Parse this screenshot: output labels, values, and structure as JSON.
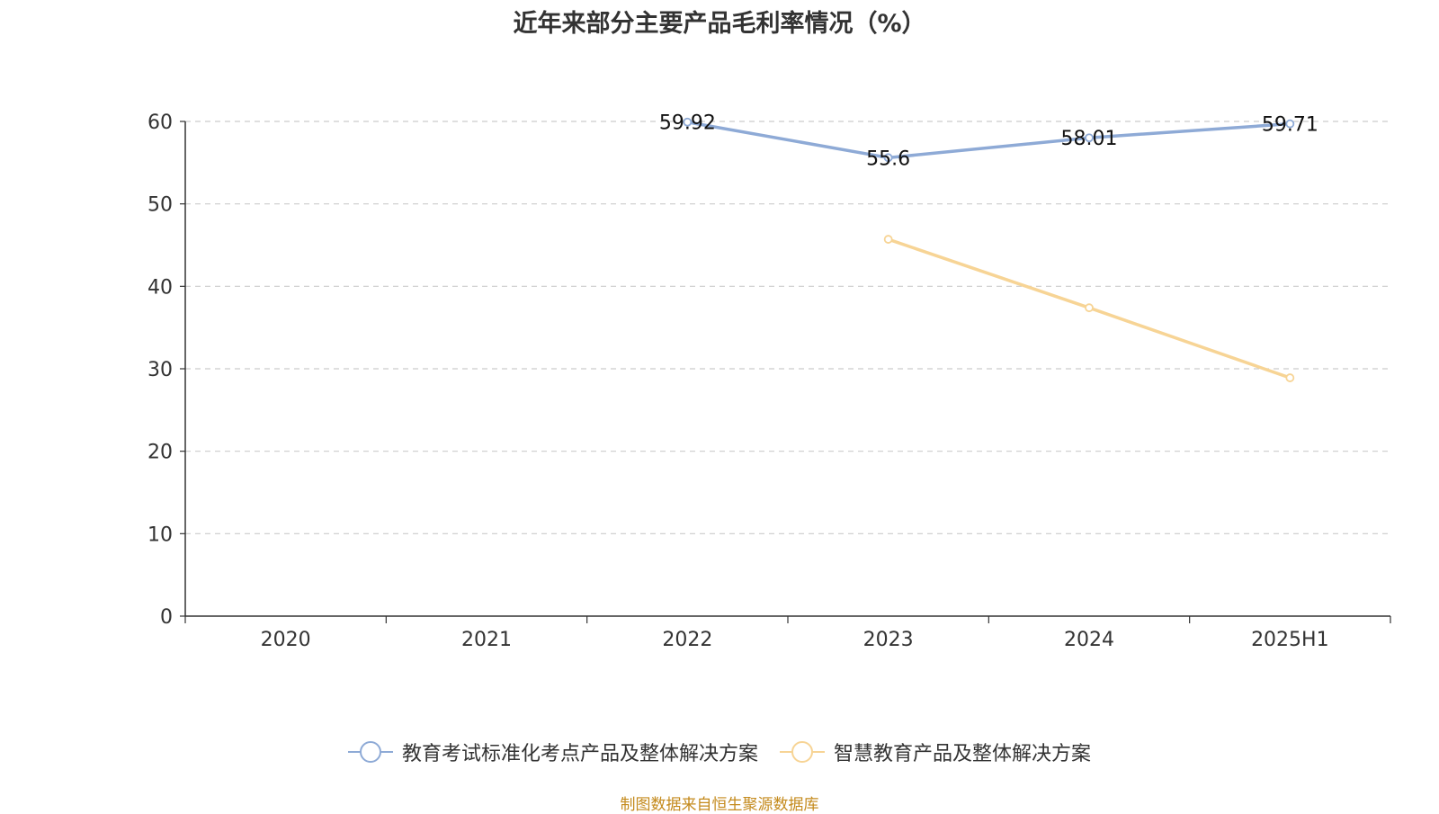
{
  "chart_data": {
    "type": "line",
    "title": "近年来部分主要产品毛利率情况（%）",
    "categories": [
      "2020",
      "2021",
      "2022",
      "2023",
      "2024",
      "2025H1"
    ],
    "ylim": [
      0,
      60
    ],
    "yticks": [
      "0",
      "10",
      "20",
      "30",
      "40",
      "50",
      "60"
    ],
    "grid": true,
    "legend_position": "bottom",
    "series": [
      {
        "name": "教育考试标准化考点产品及整体解决方案",
        "color": "#8eaad6",
        "values": [
          null,
          null,
          59.92,
          55.6,
          58.01,
          59.71
        ],
        "labels": [
          "",
          "",
          "59.92",
          "55.6",
          "58.01",
          "59.71"
        ]
      },
      {
        "name": "智慧教育产品及整体解决方案",
        "color": "#f7d495",
        "values": [
          null,
          null,
          null,
          45.7,
          37.4,
          28.9
        ],
        "labels": [
          "",
          "",
          "",
          "",
          "",
          ""
        ]
      }
    ]
  },
  "source_note": "制图数据来自恒生聚源数据库"
}
